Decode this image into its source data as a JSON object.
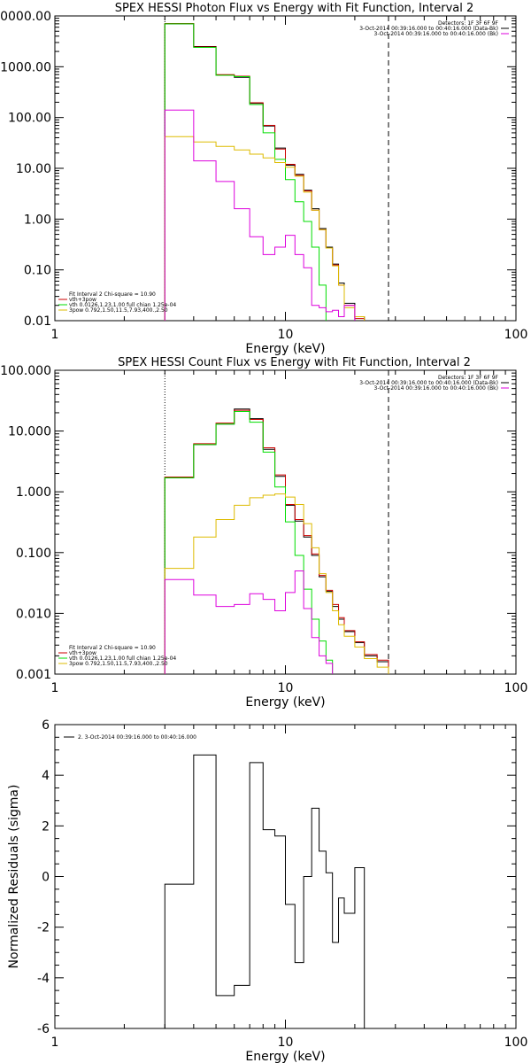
{
  "chart_data": [
    {
      "type": "line",
      "title": "SPEX HESSI Photon Flux vs Energy with Fit Function, Interval 2",
      "xlabel": "Energy (keV)",
      "ylabel": "",
      "xscale": "log",
      "yscale": "log",
      "xlim": [
        1,
        100
      ],
      "ylim": [
        0.01,
        10000
      ],
      "x_tick_labels": [
        "1",
        "10",
        "100"
      ],
      "y_tick_labels": [
        "0.01",
        "0.10",
        "1.00",
        "10.00",
        "100.00",
        "1000.00",
        "0000.00"
      ],
      "legend_top_right": [
        "Detectors: 1F 3F 6F 9F",
        "3-Oct-2014 00:39:16.000 to 00:40:16.000 (Data-Bk)",
        "3-Oct-2014 00:39:16.000 to 00:40:16.000 (Bk)"
      ],
      "legend_bottom_left": [
        "Fit Interval  2   Chi-square = 10.90",
        "vth+3pow",
        "vth 0.0126,1.23,1.00  full chian 1.25e-04",
        "3pow 0.792,1.50,11.5,7.93,400.,2.50"
      ],
      "vlines": [
        {
          "x": 3.0,
          "style": "dotted"
        },
        {
          "x": 28.0,
          "style": "dashed"
        }
      ],
      "bin_edges": [
        3.0,
        4.0,
        5.0,
        6.0,
        7.0,
        8.0,
        9.0,
        10.0,
        11.0,
        12.0,
        13.0,
        14.0,
        15.0,
        16.0,
        17.0,
        18.0,
        20.0,
        22.0,
        25.0,
        28.0
      ],
      "series": [
        {
          "color": "#000000",
          "values": [
            7000,
            2500,
            680,
            620,
            190,
            68,
            25,
            11.5,
            7.6,
            3.7,
            1.6,
            0.65,
            0.28,
            0.13,
            0.055,
            0.022,
            0.012
          ]
        },
        {
          "color": "#cc0000",
          "values": [
            7100,
            2450,
            700,
            650,
            195,
            70,
            24,
            12.0,
            7.3,
            3.6,
            1.5,
            0.62,
            0.27,
            0.125,
            0.05,
            0.02,
            0.011
          ]
        },
        {
          "color": "#00dd00",
          "values": [
            7000,
            2400,
            680,
            640,
            180,
            50,
            15,
            6.0,
            2.2,
            0.9,
            0.28,
            0.05
          ]
        },
        {
          "color": "#ddbb00",
          "values": [
            42,
            33,
            27,
            23,
            19,
            16,
            13,
            10.5,
            7.0,
            3.4,
            1.5,
            0.62,
            0.27,
            0.12,
            0.05,
            0.018,
            0.012
          ]
        },
        {
          "color": "#dd00dd",
          "values": [
            140,
            14,
            5.5,
            1.6,
            0.45,
            0.2,
            0.28,
            0.48,
            0.2,
            0.11,
            0.02,
            0.018,
            0.015,
            0.016,
            0.012,
            0.02
          ]
        }
      ]
    },
    {
      "type": "line",
      "title": "SPEX HESSI Count Flux vs Energy with Fit Function, Interval 2",
      "xlabel": "Energy (keV)",
      "ylabel": "",
      "xscale": "log",
      "yscale": "log",
      "xlim": [
        1,
        100
      ],
      "ylim": [
        0.001,
        100
      ],
      "x_tick_labels": [
        "1",
        "10",
        "100"
      ],
      "y_tick_labels": [
        "0.001",
        "0.010",
        "0.100",
        "1.000",
        "10.000",
        "100.000"
      ],
      "legend_top_right": [
        "Detectors: 1F 3F 6F 9F",
        "3-Oct-2014 00:39:16.000 to 00:40:16.000 (Data-Bk)",
        "3-Oct-2014 00:39:16.000 to 00:40:16.000 (Bk)"
      ],
      "legend_bottom_left": [
        "Fit Interval  2   Chi-square = 10.90",
        "vth+3pow",
        "vth 0.0126,1.23,1.00  full chian 1.25e-04",
        "3pow 0.792,1.50,11.5,7.93,400.,2.50"
      ],
      "vlines": [
        {
          "x": 3.0,
          "style": "dotted"
        },
        {
          "x": 28.0,
          "style": "dashed"
        }
      ],
      "bin_edges": [
        3.0,
        4.0,
        5.0,
        6.0,
        7.0,
        8.0,
        9.0,
        10.0,
        11.0,
        12.0,
        13.0,
        14.0,
        15.0,
        16.0,
        17.0,
        18.0,
        20.0,
        22.0,
        25.0,
        28.0
      ],
      "series": [
        {
          "color": "#000000",
          "values": [
            1.7,
            6.0,
            13.0,
            23,
            16,
            5.0,
            1.8,
            0.6,
            0.33,
            0.18,
            0.09,
            0.04,
            0.023,
            0.013,
            0.008,
            0.005,
            0.0033,
            0.002,
            0.0016
          ]
        },
        {
          "color": "#cc0000",
          "values": [
            1.75,
            6.2,
            13.5,
            22,
            15.5,
            5.3,
            1.9,
            0.62,
            0.35,
            0.19,
            0.095,
            0.042,
            0.024,
            0.014,
            0.0085,
            0.0052,
            0.0034,
            0.0021,
            0.0017
          ]
        },
        {
          "color": "#00dd00",
          "values": [
            1.7,
            6.0,
            13.0,
            21,
            14,
            4.5,
            1.2,
            0.32,
            0.09,
            0.025,
            0.008,
            0.0035,
            0.0017
          ]
        },
        {
          "color": "#ddbb00",
          "values": [
            0.055,
            0.18,
            0.35,
            0.6,
            0.8,
            0.88,
            0.92,
            0.82,
            0.62,
            0.3,
            0.12,
            0.045,
            0.022,
            0.011,
            0.0065,
            0.0042,
            0.0028,
            0.0018,
            0.0013
          ]
        },
        {
          "color": "#dd00dd",
          "values": [
            0.036,
            0.02,
            0.013,
            0.014,
            0.021,
            0.017,
            0.011,
            0.022,
            0.05,
            0.012,
            0.004,
            0.002,
            0.0015
          ]
        }
      ]
    },
    {
      "type": "line",
      "title": "",
      "xlabel": "Energy (keV)",
      "ylabel": "Normalized Residuals (sigma)",
      "xscale": "log",
      "yscale": "linear",
      "xlim": [
        1,
        100
      ],
      "ylim": [
        -6,
        6
      ],
      "x_tick_labels": [
        "1",
        "10",
        "100"
      ],
      "y_tick_labels": [
        "-6",
        "-4",
        "-2",
        "0",
        "2",
        "4",
        "6"
      ],
      "legend": [
        "2.  3-Oct-2014 00:39:16.000 to 00:40:16.000"
      ],
      "bin_edges": [
        3.0,
        4.0,
        5.0,
        6.0,
        7.0,
        8.0,
        9.0,
        10.0,
        11.0,
        12.0,
        13.0,
        14.0,
        15.0,
        16.0,
        17.0,
        18.0,
        20.0,
        22.0,
        25.0,
        28.0
      ],
      "series": [
        {
          "color": "#000000",
          "values": [
            -0.3,
            4.8,
            -4.7,
            -4.3,
            4.5,
            1.85,
            1.6,
            -1.1,
            -3.4,
            0.0,
            2.7,
            1.0,
            0.15,
            -2.6,
            -0.85,
            -1.45,
            0.35
          ]
        }
      ]
    }
  ]
}
